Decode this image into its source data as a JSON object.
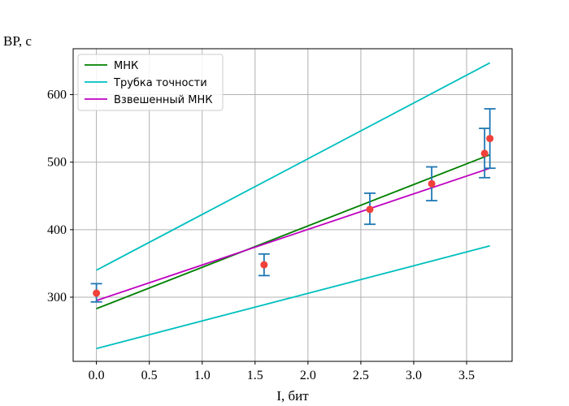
{
  "chart_data": {
    "type": "scatter",
    "xlabel": "I, бит",
    "ylabel": "BP, с",
    "xlim": [
      -0.22,
      3.93
    ],
    "ylim": [
      205,
      668
    ],
    "xticks": [
      0.0,
      0.5,
      1.0,
      1.5,
      2.0,
      2.5,
      3.0,
      3.5
    ],
    "xtick_labels": [
      "0.0",
      "0.5",
      "1.0",
      "1.5",
      "2.0",
      "2.5",
      "3.0",
      "3.5"
    ],
    "yticks": [
      300,
      400,
      500,
      600
    ],
    "ytick_labels": [
      "300",
      "400",
      "500",
      "600"
    ],
    "grid": true,
    "legend_position": "top-left",
    "points": {
      "color": "#f0413a",
      "x": [
        0.0,
        1.585,
        2.585,
        3.17,
        3.67,
        3.72
      ],
      "y": [
        306,
        348,
        430,
        468,
        513,
        535
      ]
    },
    "error_bars": {
      "color": "#1f77b4",
      "x": [
        0.0,
        1.585,
        2.585,
        3.17,
        3.67,
        3.72
      ],
      "low": [
        293,
        332,
        408,
        443,
        477,
        491
      ],
      "high": [
        320,
        364,
        454,
        493,
        550,
        579
      ]
    },
    "series": [
      {
        "name": "МНК",
        "color": "#008000",
        "x": [
          0.0,
          3.72
        ],
        "y": [
          283,
          511
        ]
      },
      {
        "name": "Трубка точности",
        "color": "#00bfbf",
        "x": [
          0.0,
          3.72
        ],
        "y": [
          340,
          647
        ]
      },
      {
        "name": "",
        "color": "#00bfbf",
        "x": [
          0.0,
          3.72
        ],
        "y": [
          224,
          376
        ]
      },
      {
        "name": "Взвешенный МНК",
        "color": "#bf00bf",
        "x": [
          0.0,
          3.72
        ],
        "y": [
          295,
          491
        ]
      }
    ]
  }
}
